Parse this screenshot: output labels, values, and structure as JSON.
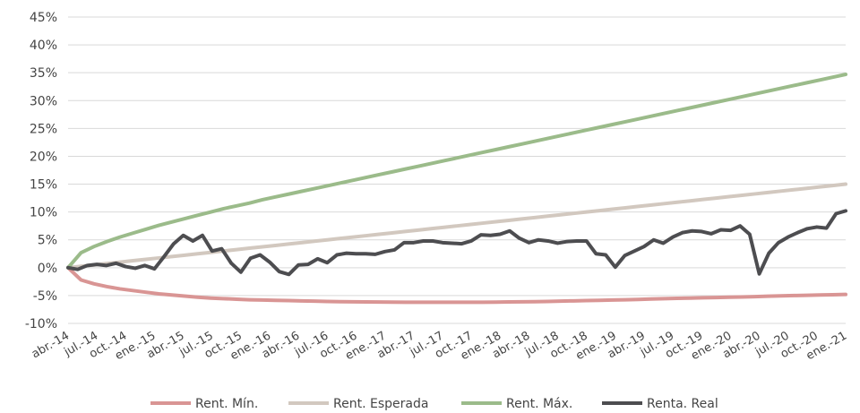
{
  "chart_data": {
    "type": "line",
    "title": "",
    "xlabel": "",
    "ylabel": "",
    "ylim": [
      -10,
      45
    ],
    "yticks": [
      -10,
      -5,
      0,
      5,
      10,
      15,
      20,
      25,
      30,
      35,
      40,
      45
    ],
    "ytick_labels": [
      "-10%",
      "-5%",
      "0%",
      "5%",
      "10%",
      "15%",
      "20%",
      "25%",
      "30%",
      "35%",
      "40%",
      "45%"
    ],
    "x_start": "abr.-14",
    "x_end": "ene.-21",
    "xtick_labels": [
      "abr.-14",
      "jul.-14",
      "oct.-14",
      "ene.-15",
      "abr.-15",
      "jul.-15",
      "oct.-15",
      "ene.-16",
      "abr.-16",
      "jul.-16",
      "oct.-16",
      "ene.-17",
      "abr.-17",
      "jul.-17",
      "oct.-17",
      "ene.-18",
      "abr.-18",
      "jul.-18",
      "oct.-18",
      "ene.-19",
      "abr.-19",
      "jul.-19",
      "oct.-19",
      "ene.-20",
      "abr.-20",
      "jul.-20",
      "oct.-20",
      "ene.-21"
    ],
    "grid": "horizontal",
    "legend_position": "bottom",
    "series": [
      {
        "name": "Rent. Mín.",
        "color": "#d99594",
        "values": [
          0,
          -2.2,
          -2.9,
          -3.4,
          -3.8,
          -4.1,
          -4.4,
          -4.7,
          -4.9,
          -5.1,
          -5.3,
          -5.45,
          -5.55,
          -5.65,
          -5.75,
          -5.8,
          -5.85,
          -5.9,
          -5.95,
          -6.0,
          -6.05,
          -6.1,
          -6.12,
          -6.15,
          -6.17,
          -6.18,
          -6.2,
          -6.2,
          -6.2,
          -6.2,
          -6.2,
          -6.2,
          -6.2,
          -6.18,
          -6.15,
          -6.12,
          -6.1,
          -6.05,
          -6.0,
          -5.95,
          -5.9,
          -5.85,
          -5.8,
          -5.75,
          -5.7,
          -5.62,
          -5.55,
          -5.5,
          -5.45,
          -5.4,
          -5.35,
          -5.3,
          -5.25,
          -5.2,
          -5.12,
          -5.05,
          -5.0,
          -4.95,
          -4.9,
          -4.85,
          -4.8
        ]
      },
      {
        "name": "Rent. Esperada",
        "color": "#d2c8bf",
        "values": [
          0,
          0.25,
          0.5,
          0.75,
          1.0,
          1.25,
          1.5,
          1.75,
          2.0,
          2.25,
          2.5,
          2.75,
          3.0,
          3.25,
          3.5,
          3.75,
          4.0,
          4.25,
          4.5,
          4.75,
          5.0,
          5.25,
          5.5,
          5.75,
          6.0,
          6.25,
          6.5,
          6.75,
          7.0,
          7.25,
          7.5,
          7.75,
          8.0,
          8.25,
          8.5,
          8.75,
          9.0,
          9.25,
          9.5,
          9.75,
          10.0,
          10.25,
          10.5,
          10.75,
          11.0,
          11.25,
          11.5,
          11.75,
          12.0,
          12.25,
          12.5,
          12.75,
          13.0,
          13.25,
          13.5,
          13.75,
          14.0,
          14.25,
          14.5,
          14.75,
          15.0
        ]
      },
      {
        "name": "Rent. Máx.",
        "color": "#9bbb8a",
        "values": [
          0,
          2.7,
          3.8,
          4.7,
          5.5,
          6.2,
          6.9,
          7.6,
          8.2,
          8.8,
          9.4,
          10.0,
          10.6,
          11.1,
          11.6,
          12.2,
          12.7,
          13.2,
          13.7,
          14.2,
          14.7,
          15.2,
          15.7,
          16.2,
          16.7,
          17.2,
          17.7,
          18.2,
          18.7,
          19.2,
          19.7,
          20.2,
          20.7,
          21.2,
          21.7,
          22.2,
          22.7,
          23.2,
          23.7,
          24.2,
          24.7,
          25.2,
          25.7,
          26.2,
          26.7,
          27.2,
          27.7,
          28.2,
          28.7,
          29.2,
          29.7,
          30.2,
          30.7,
          31.2,
          31.7,
          32.2,
          32.7,
          33.2,
          33.7,
          34.2,
          34.7
        ]
      },
      {
        "name": "Renta. Real",
        "color": "#4d4d50",
        "values": [
          0,
          -0.3,
          0.4,
          0.6,
          0.4,
          0.8,
          0.2,
          -0.1,
          0.4,
          -0.2,
          2.0,
          4.3,
          5.8,
          4.8,
          5.8,
          3.0,
          3.4,
          0.8,
          -0.8,
          1.7,
          2.3,
          1.0,
          -0.7,
          -1.2,
          0.5,
          0.6,
          1.6,
          0.9,
          2.3,
          2.6,
          2.5,
          2.5,
          2.4,
          2.9,
          3.2,
          4.5,
          4.5,
          4.8,
          4.8,
          4.5,
          4.4,
          4.3,
          4.8,
          5.9,
          5.8,
          6.0,
          6.6,
          5.3,
          4.5,
          5.0,
          4.8,
          4.4,
          4.7,
          4.8,
          4.8,
          2.5,
          2.3,
          0.1,
          2.2,
          3.0,
          3.8,
          5.0,
          4.4,
          5.5,
          6.3,
          6.6,
          6.5,
          6.1,
          6.8,
          6.7,
          7.5,
          6.0,
          -1.1,
          2.6,
          4.5,
          5.5,
          6.3,
          7.0,
          7.3,
          7.1,
          9.7,
          10.2
        ]
      }
    ]
  }
}
